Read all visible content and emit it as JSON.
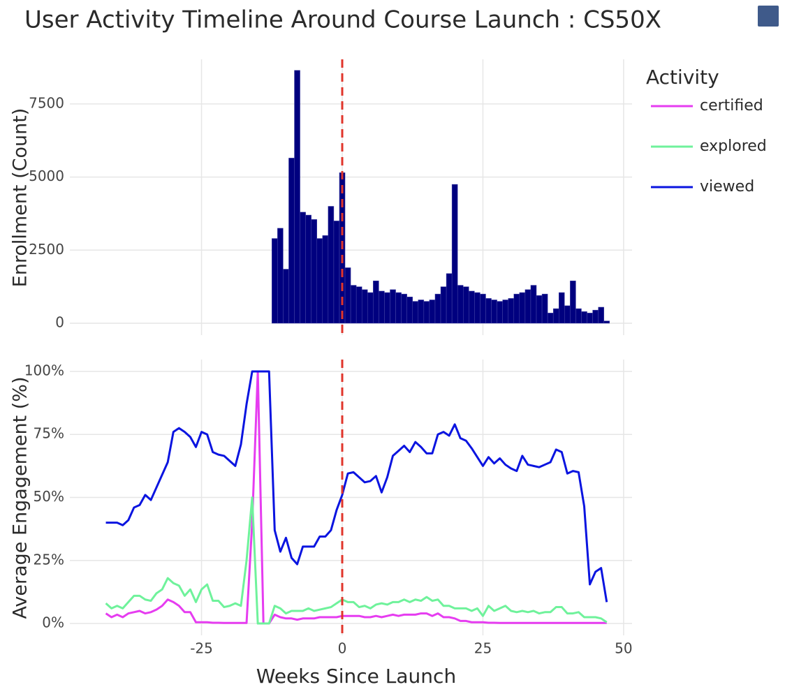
{
  "chart_data": [
    {
      "type": "histogram",
      "title": "User Activity Timeline Around Course Launch : CS50X",
      "ylabel": "Enrollment (Count)",
      "color": "#00007f",
      "xlim": [
        -48.4,
        51.5
      ],
      "ylim": [
        -406,
        9026
      ],
      "yticks": [
        0,
        2500,
        5000,
        7500
      ],
      "grid": true,
      "vline": 0,
      "bins": [
        -12.5,
        -11.5,
        -10.5,
        -9.5,
        -8.5,
        -7.5,
        -6.5,
        -5.5,
        -4.5,
        -3.5,
        -2.5,
        -1.5,
        -0.5,
        0.5,
        1.5,
        2.5,
        3.5,
        4.5,
        5.5,
        6.5,
        7.5,
        8.5,
        9.5,
        10.5,
        11.5,
        12.5,
        13.5,
        14.5,
        15.5,
        16.5,
        17.5,
        18.5,
        19.5,
        20.5,
        21.5,
        22.5,
        23.5,
        24.5,
        25.5,
        26.5,
        27.5,
        28.5,
        29.5,
        30.5,
        31.5,
        32.5,
        33.5,
        34.5,
        35.5,
        36.5,
        37.5,
        38.5,
        39.5,
        40.5,
        41.5,
        42.5,
        43.5,
        44.5,
        45.5,
        46.5,
        47.5
      ],
      "values": [
        2900,
        3250,
        1850,
        5650,
        8650,
        3800,
        3700,
        3550,
        2900,
        3000,
        4000,
        3500,
        5150,
        1900,
        1300,
        1250,
        1150,
        1050,
        1450,
        1100,
        1050,
        1150,
        1050,
        1000,
        900,
        750,
        800,
        750,
        800,
        1000,
        1250,
        1700,
        4750,
        1300,
        1250,
        1100,
        1050,
        1000,
        850,
        800,
        750,
        800,
        850,
        1000,
        1050,
        1150,
        1300,
        950,
        1000,
        350,
        500,
        1050,
        600,
        1450,
        500,
        400,
        350,
        450,
        550,
        80
      ]
    },
    {
      "type": "line",
      "xlabel": "Weeks Since Launch",
      "ylabel": "Average Engagement (%)",
      "legend_title": "Activity",
      "legend": "right",
      "xlim": [
        -48.4,
        51.5
      ],
      "ylim": [
        -4.7,
        104.7
      ],
      "xticks": [
        -25,
        0,
        25,
        50
      ],
      "yticks": [
        {
          "value": 0,
          "label": "0%"
        },
        {
          "value": 25,
          "label": "25%"
        },
        {
          "value": 50,
          "label": "50%"
        },
        {
          "value": 75,
          "label": "75%"
        },
        {
          "value": 100,
          "label": "100%"
        }
      ],
      "grid": true,
      "vline": 0,
      "x": [
        -42,
        -41,
        -40,
        -39,
        -38,
        -37,
        -36,
        -35,
        -34,
        -33,
        -32,
        -31,
        -30,
        -29,
        -28,
        -27,
        -26,
        -25,
        -24,
        -23,
        -22,
        -21,
        -20,
        -19,
        -18,
        -17,
        -16,
        -15,
        -14,
        -13,
        -12,
        -11,
        -10,
        -9,
        -8,
        -7,
        -6,
        -5,
        -4,
        -3,
        -2,
        -1,
        0,
        1,
        2,
        3,
        4,
        5,
        6,
        7,
        8,
        9,
        10,
        11,
        12,
        13,
        14,
        15,
        16,
        17,
        18,
        19,
        20,
        21,
        22,
        23,
        24,
        25,
        26,
        27,
        28,
        29,
        30,
        31,
        32,
        33,
        34,
        35,
        36,
        37,
        38,
        39,
        40,
        41,
        42,
        43,
        44,
        45,
        46,
        47
      ],
      "series": [
        {
          "name": "certified",
          "color": "#e63cf0",
          "values": [
            4,
            2.5,
            3.5,
            2.5,
            4,
            4.5,
            5,
            4,
            4.5,
            5.5,
            7,
            9.5,
            8.5,
            7,
            4.5,
            4.5,
            0.5,
            0.5,
            0.5,
            0.3,
            0.3,
            0.2,
            0.2,
            0.2,
            0.2,
            0.2,
            40,
            100,
            0,
            0,
            3.5,
            2.5,
            2,
            2,
            1.5,
            2,
            2,
            2,
            2.5,
            2.5,
            2.5,
            2.5,
            3,
            3,
            3,
            3,
            2.5,
            2.5,
            3,
            2.5,
            3,
            3.5,
            3,
            3.5,
            3.5,
            3.5,
            4,
            4,
            3,
            4,
            2.5,
            2.5,
            2,
            1,
            1,
            0.5,
            0.5,
            0.5,
            0.3,
            0.3,
            0.2,
            0.2,
            0.2,
            0.2,
            0.2,
            0.2,
            0.2,
            0.2,
            0.2,
            0.2,
            0.2,
            0.2,
            0.2,
            0.2,
            0.2,
            0.2,
            0.2,
            0.2,
            0.2,
            0.2
          ]
        },
        {
          "name": "explored",
          "color": "#6ff29b",
          "values": [
            8,
            6,
            7,
            6,
            8.5,
            11,
            11,
            9.5,
            9,
            12,
            13.5,
            18,
            16,
            15,
            11,
            13.5,
            8.5,
            13.5,
            15.5,
            9,
            9,
            6.5,
            7,
            8,
            7,
            25,
            50,
            0,
            0,
            0,
            7,
            6,
            4,
            5,
            5,
            5,
            6,
            5,
            5.5,
            6,
            6.5,
            8,
            9.5,
            8.5,
            8.5,
            6.5,
            7,
            6,
            7.5,
            8,
            7.5,
            8.5,
            8.5,
            9.5,
            8.5,
            9.5,
            9,
            10.5,
            9,
            9.5,
            7,
            7,
            6,
            6,
            6,
            5,
            6,
            3,
            7,
            5,
            6,
            7,
            5,
            4.5,
            5,
            4.5,
            5,
            4,
            4.5,
            4.5,
            6.5,
            6.5,
            4,
            4,
            4.5,
            2.5,
            2.5,
            2.5,
            2,
            0.5
          ]
        },
        {
          "name": "viewed",
          "color": "#0a14e0",
          "values": [
            40,
            40,
            40,
            39,
            41,
            46,
            47,
            51,
            49,
            54,
            59,
            64,
            76,
            77.5,
            76,
            74,
            70,
            76,
            75,
            68,
            67,
            66.5,
            64.5,
            62.5,
            71,
            87,
            100,
            100,
            100,
            100,
            37,
            28.5,
            34,
            26,
            23.5,
            30.5,
            30.5,
            30.5,
            34.5,
            34.5,
            37,
            45,
            51,
            59.5,
            60,
            58,
            56,
            56.5,
            58.5,
            52,
            58,
            66.5,
            68.5,
            70.5,
            68,
            72,
            70,
            67.5,
            67.5,
            75,
            76,
            74.5,
            79,
            73.5,
            72.5,
            69.5,
            66,
            62.5,
            66,
            63.5,
            65.5,
            63,
            61.5,
            60.5,
            66.5,
            63,
            62.5,
            62,
            63,
            64,
            69,
            68,
            59.5,
            60.5,
            60,
            46.5,
            15.5,
            20.5,
            22,
            8.5
          ]
        }
      ]
    }
  ]
}
